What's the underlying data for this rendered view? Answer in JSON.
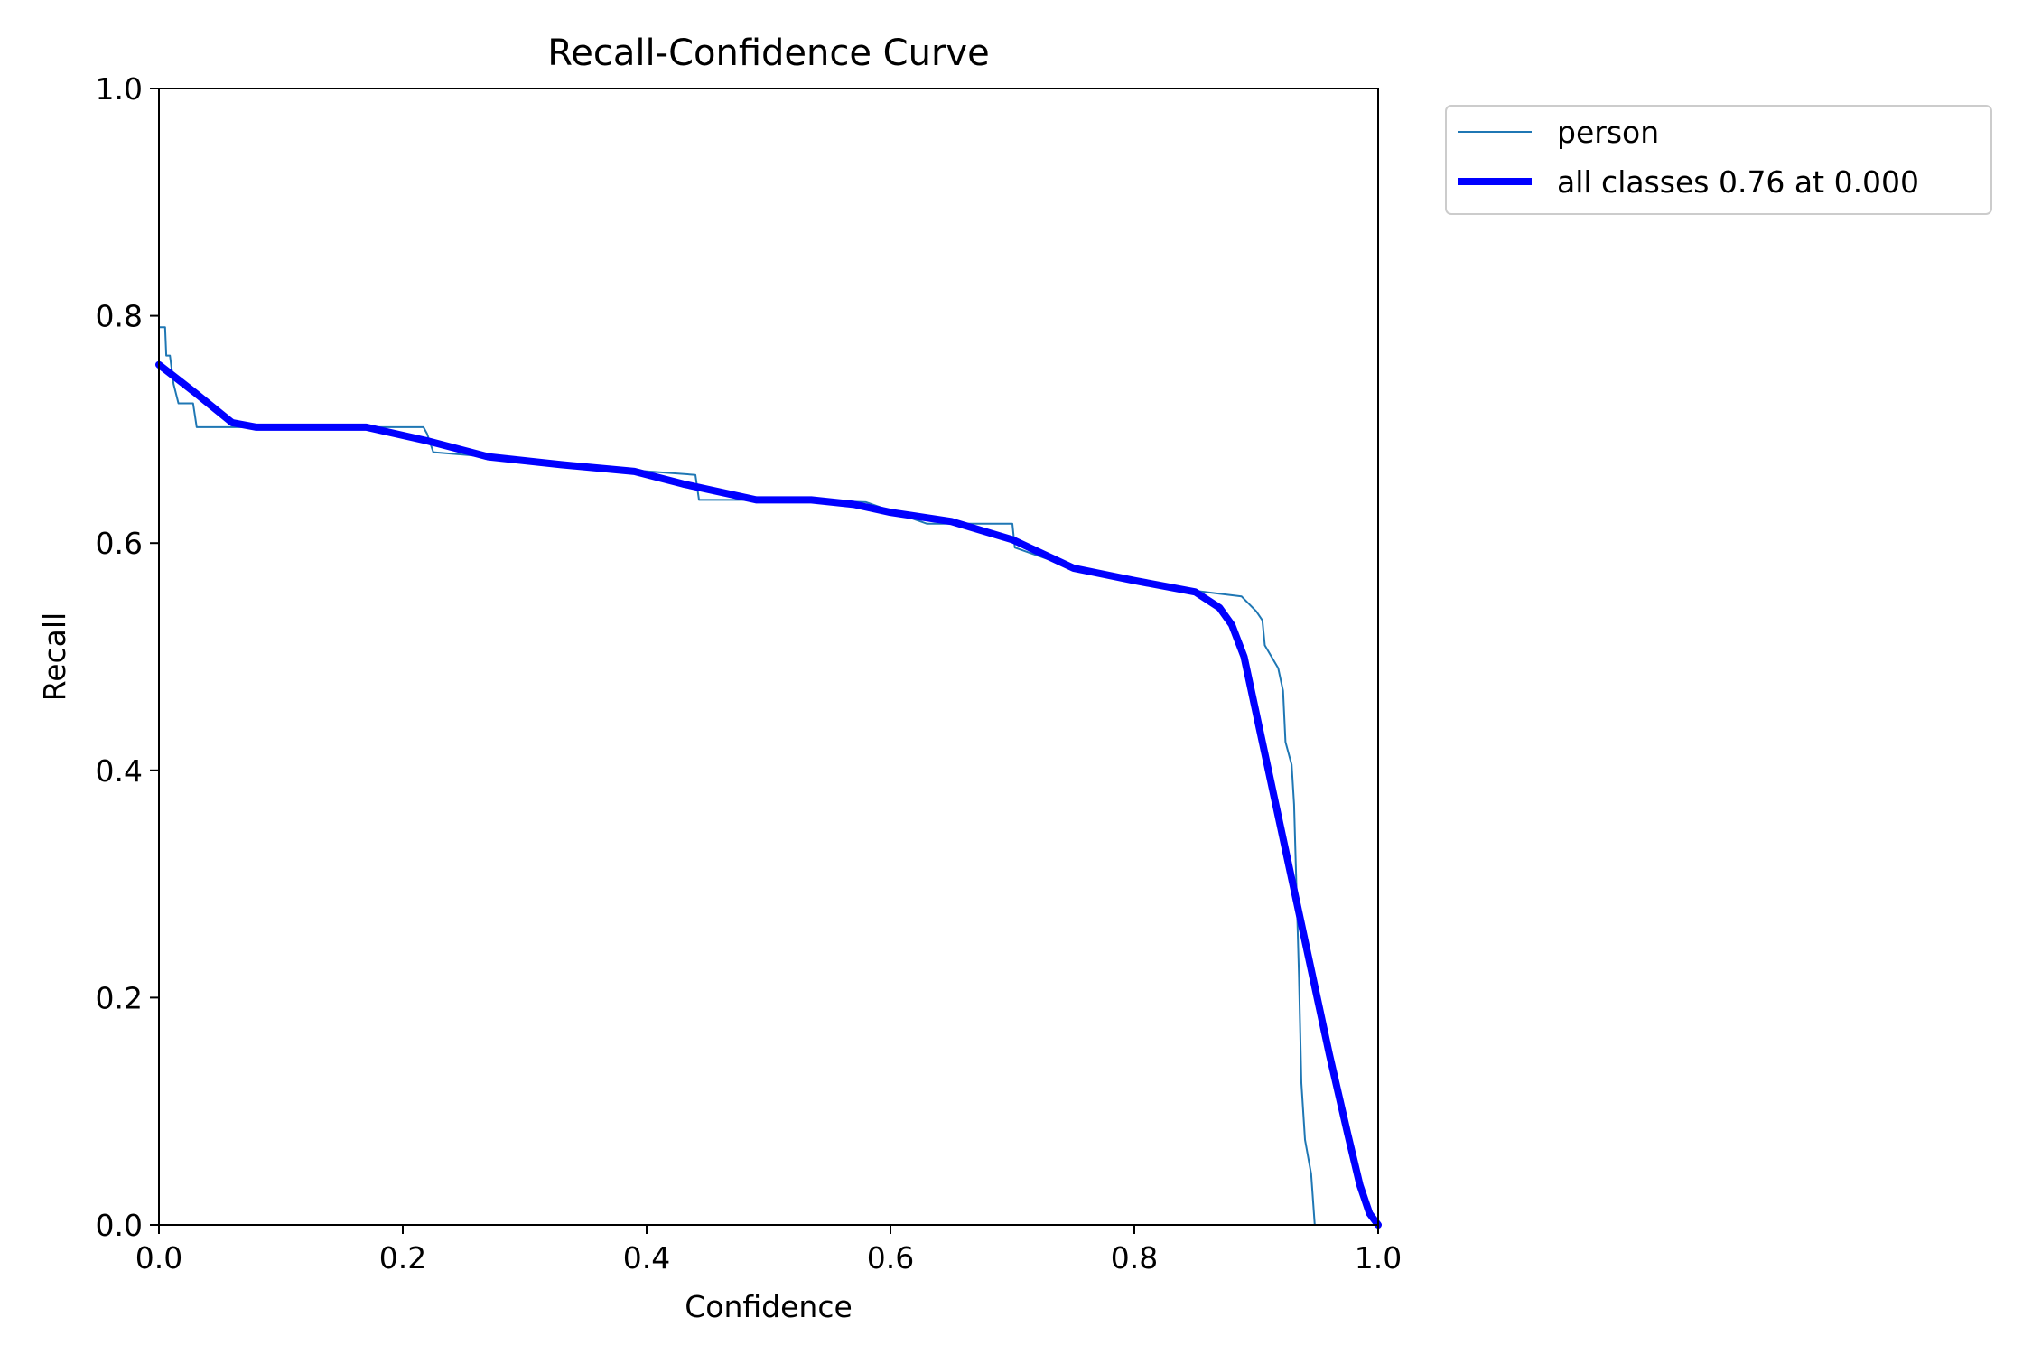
{
  "chart_data": {
    "type": "line",
    "title": "Recall-Confidence Curve",
    "xlabel": "Confidence",
    "ylabel": "Recall",
    "xlim": [
      0.0,
      1.0
    ],
    "ylim": [
      0.0,
      1.0
    ],
    "x_ticks": [
      "0.0",
      "0.2",
      "0.4",
      "0.6",
      "0.8",
      "1.0"
    ],
    "y_ticks": [
      "0.0",
      "0.2",
      "0.4",
      "0.6",
      "0.8",
      "1.0"
    ],
    "grid": false,
    "legend_position": "outside top-right",
    "series": [
      {
        "name": "person",
        "color": "#1f77b4",
        "style": "thin",
        "points": [
          [
            0.0,
            0.79
          ],
          [
            0.005,
            0.79
          ],
          [
            0.006,
            0.765
          ],
          [
            0.009,
            0.765
          ],
          [
            0.012,
            0.74
          ],
          [
            0.016,
            0.723
          ],
          [
            0.028,
            0.723
          ],
          [
            0.031,
            0.702
          ],
          [
            0.06,
            0.702
          ],
          [
            0.217,
            0.702
          ],
          [
            0.22,
            0.696
          ],
          [
            0.225,
            0.68
          ],
          [
            0.27,
            0.676
          ],
          [
            0.39,
            0.664
          ],
          [
            0.44,
            0.66
          ],
          [
            0.443,
            0.638
          ],
          [
            0.52,
            0.638
          ],
          [
            0.58,
            0.636
          ],
          [
            0.63,
            0.617
          ],
          [
            0.7,
            0.617
          ],
          [
            0.702,
            0.596
          ],
          [
            0.75,
            0.578
          ],
          [
            0.8,
            0.566
          ],
          [
            0.85,
            0.558
          ],
          [
            0.888,
            0.553
          ],
          [
            0.9,
            0.54
          ],
          [
            0.905,
            0.532
          ],
          [
            0.907,
            0.51
          ],
          [
            0.918,
            0.49
          ],
          [
            0.922,
            0.47
          ],
          [
            0.924,
            0.425
          ],
          [
            0.929,
            0.405
          ],
          [
            0.931,
            0.37
          ],
          [
            0.935,
            0.22
          ],
          [
            0.937,
            0.125
          ],
          [
            0.94,
            0.075
          ],
          [
            0.945,
            0.045
          ],
          [
            0.948,
            0.0
          ],
          [
            1.0,
            0.0
          ]
        ]
      },
      {
        "name": "all classes 0.76 at 0.000",
        "color": "#0000ff",
        "style": "thick",
        "points": [
          [
            0.0,
            0.757
          ],
          [
            0.03,
            0.732
          ],
          [
            0.06,
            0.706
          ],
          [
            0.08,
            0.702
          ],
          [
            0.17,
            0.702
          ],
          [
            0.22,
            0.69
          ],
          [
            0.27,
            0.676
          ],
          [
            0.33,
            0.669
          ],
          [
            0.39,
            0.663
          ],
          [
            0.43,
            0.652
          ],
          [
            0.49,
            0.638
          ],
          [
            0.535,
            0.638
          ],
          [
            0.57,
            0.634
          ],
          [
            0.6,
            0.627
          ],
          [
            0.65,
            0.619
          ],
          [
            0.7,
            0.603
          ],
          [
            0.75,
            0.578
          ],
          [
            0.8,
            0.567
          ],
          [
            0.85,
            0.557
          ],
          [
            0.87,
            0.543
          ],
          [
            0.88,
            0.528
          ],
          [
            0.89,
            0.5
          ],
          [
            0.9,
            0.45
          ],
          [
            0.92,
            0.35
          ],
          [
            0.94,
            0.25
          ],
          [
            0.96,
            0.15
          ],
          [
            0.975,
            0.08
          ],
          [
            0.985,
            0.035
          ],
          [
            0.993,
            0.01
          ],
          [
            1.0,
            0.0
          ]
        ]
      }
    ]
  }
}
